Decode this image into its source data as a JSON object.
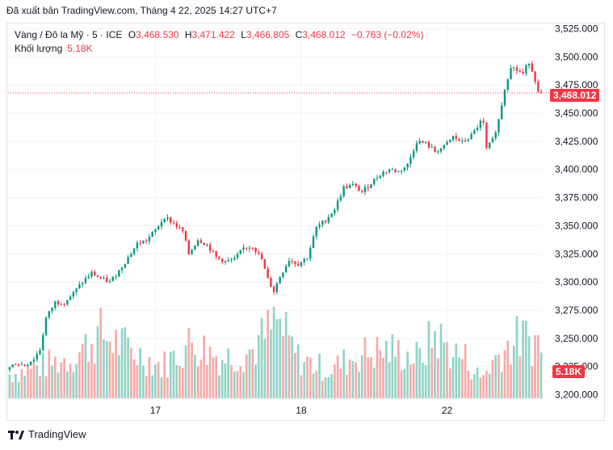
{
  "export_line": "Đã xuất bản TradingView.com, Tháng 4 22, 2025 14:27 UTC+7",
  "legend": {
    "symbol": "Vàng / Đô la Mỹ · 5 · ICE",
    "o_label": "O",
    "o_value": "3,468.530",
    "h_label": "H",
    "h_value": "3,471.422",
    "l_label": "L",
    "l_value": "3,466.805",
    "c_label": "C",
    "c_value": "3,468.012",
    "change": "−0.763 (−0.02%)",
    "volume_label": "Khối lượng",
    "volume_value": "5.18K"
  },
  "price_tag": "3,468.012",
  "volume_tag": "5.18K",
  "footer": {
    "brand": "TradingView"
  },
  "colors": {
    "up": "#089981",
    "down": "#f23645",
    "up_vol": "#8fd3c8",
    "down_vol": "#f7a9a7",
    "grid": "#f0f3fa"
  },
  "chart_data": {
    "type": "candlestick",
    "y_ticks": [
      "3,525.000",
      "3,500.000",
      "3,475.000",
      "3,450.000",
      "3,425.000",
      "3,400.000",
      "3,375.000",
      "3,350.000",
      "3,325.000",
      "3,300.000",
      "3,275.000",
      "3,250.000",
      "3,225.000",
      "3,200.000"
    ],
    "ylim": [
      3196,
      3529
    ],
    "x_ticks": [
      "17",
      "18",
      "22"
    ],
    "last_price": 3468.012,
    "price_path": [
      [
        0,
        3222
      ],
      [
        3,
        3228
      ],
      [
        6,
        3226
      ],
      [
        9,
        3232
      ],
      [
        11,
        3240
      ],
      [
        13,
        3268
      ],
      [
        16,
        3282
      ],
      [
        19,
        3282
      ],
      [
        22,
        3290
      ],
      [
        25,
        3300
      ],
      [
        28,
        3308
      ],
      [
        31,
        3303
      ],
      [
        34,
        3300
      ],
      [
        37,
        3310
      ],
      [
        40,
        3322
      ],
      [
        43,
        3334
      ],
      [
        46,
        3337
      ],
      [
        49,
        3346
      ],
      [
        52,
        3358
      ],
      [
        55,
        3352
      ],
      [
        58,
        3345
      ],
      [
        60,
        3325
      ],
      [
        63,
        3338
      ],
      [
        66,
        3333
      ],
      [
        69,
        3322
      ],
      [
        72,
        3318
      ],
      [
        75,
        3320
      ],
      [
        78,
        3330
      ],
      [
        81,
        3332
      ],
      [
        84,
        3320
      ],
      [
        86,
        3302
      ],
      [
        88,
        3292
      ],
      [
        90,
        3305
      ],
      [
        93,
        3320
      ],
      [
        96,
        3316
      ],
      [
        99,
        3322
      ],
      [
        102,
        3348
      ],
      [
        105,
        3355
      ],
      [
        108,
        3365
      ],
      [
        111,
        3384
      ],
      [
        114,
        3386
      ],
      [
        117,
        3380
      ],
      [
        120,
        3388
      ],
      [
        123,
        3396
      ],
      [
        126,
        3400
      ],
      [
        129,
        3398
      ],
      [
        132,
        3404
      ],
      [
        135,
        3425
      ],
      [
        138,
        3423
      ],
      [
        141,
        3416
      ],
      [
        144,
        3420
      ],
      [
        147,
        3429
      ],
      [
        150,
        3424
      ],
      [
        153,
        3430
      ],
      [
        156,
        3442
      ],
      [
        157,
        3440
      ],
      [
        158,
        3418
      ],
      [
        160,
        3426
      ],
      [
        162,
        3444
      ],
      [
        164,
        3472
      ],
      [
        166,
        3492
      ],
      [
        168,
        3488
      ],
      [
        170,
        3485
      ],
      [
        172,
        3496
      ],
      [
        174,
        3480
      ],
      [
        175,
        3468
      ]
    ],
    "volume_profile": [
      [
        0,
        0.3
      ],
      [
        10,
        0.4
      ],
      [
        20,
        0.5
      ],
      [
        30,
        0.8
      ],
      [
        40,
        0.6
      ],
      [
        50,
        0.4
      ],
      [
        60,
        0.7
      ],
      [
        70,
        0.5
      ],
      [
        80,
        0.6
      ],
      [
        88,
        0.95
      ],
      [
        95,
        0.5
      ],
      [
        105,
        0.35
      ],
      [
        115,
        0.55
      ],
      [
        125,
        0.6
      ],
      [
        135,
        0.5
      ],
      [
        140,
        0.8
      ],
      [
        145,
        0.6
      ],
      [
        150,
        0.5
      ],
      [
        155,
        0.25
      ],
      [
        162,
        0.6
      ],
      [
        168,
        0.75
      ],
      [
        175,
        0.7
      ]
    ],
    "volume_max": 6.0,
    "last_volume": 5.18,
    "bar_count": 176,
    "x_tick_bars": [
      48,
      96,
      144
    ]
  }
}
